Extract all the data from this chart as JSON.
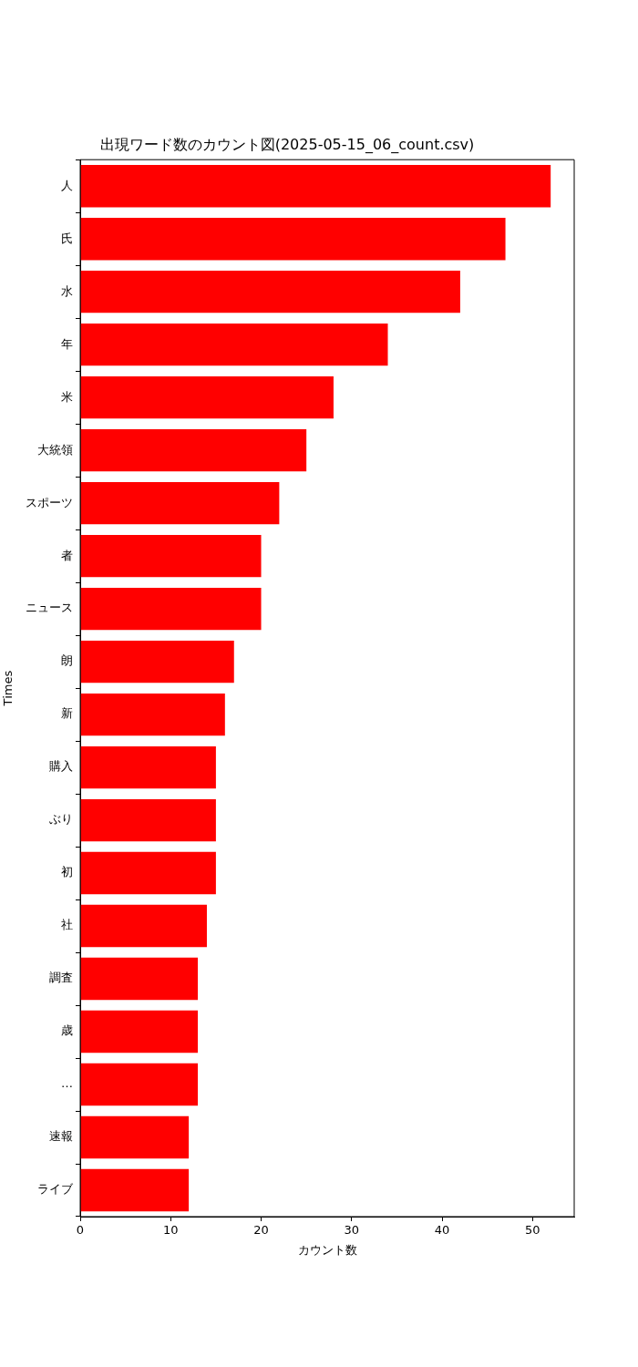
{
  "chart_data": {
    "type": "bar",
    "orientation": "horizontal",
    "title": "出現ワード数のカウント図(2025-05-15_06_count.csv)",
    "xlabel": "カウント数",
    "ylabel": "Times",
    "categories": [
      "人",
      "氏",
      "水",
      "年",
      "米",
      "大統領",
      "スポーツ",
      "者",
      "ニュース",
      "朗",
      "新",
      "購入",
      "ぶり",
      "初",
      "社",
      "調査",
      "歳",
      "…",
      "速報",
      "ライブ"
    ],
    "values": [
      52,
      47,
      42,
      34,
      28,
      25,
      22,
      20,
      20,
      17,
      16,
      15,
      15,
      15,
      14,
      13,
      13,
      13,
      12,
      12
    ],
    "color": "#ff0000",
    "xlim": [
      0,
      54.6
    ],
    "xticks": [
      0,
      10,
      20,
      30,
      40,
      50
    ],
    "grid": false,
    "legend": false
  }
}
